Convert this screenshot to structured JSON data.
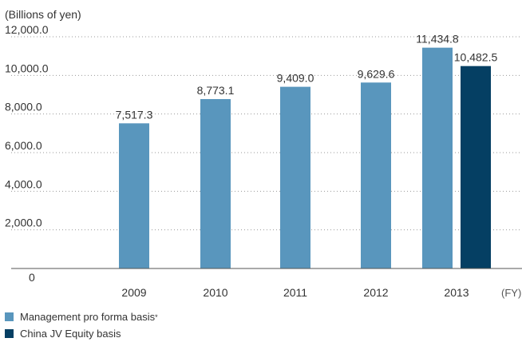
{
  "chart_data": {
    "type": "bar",
    "ylabel": "(Billions of yen)",
    "xunit": "(FY)",
    "ylim": [
      0,
      12000
    ],
    "yticks": [
      0,
      2000,
      4000,
      6000,
      8000,
      10000,
      12000
    ],
    "ytick_labels": [
      "0",
      "2,000.0",
      "4,000.0",
      "6,000.0",
      "8,000.0",
      "10,000.0",
      "12,000.0"
    ],
    "grid": "horizontal-dotted",
    "categories": [
      "2009",
      "2010",
      "2011",
      "2012",
      "2013"
    ],
    "series": [
      {
        "name": "Management pro forma basis",
        "color": "#5996bd",
        "values": [
          7517.3,
          8773.1,
          9409.0,
          9629.6,
          11434.8
        ],
        "labels": [
          "7,517.3",
          "8,773.1",
          "9,409.0",
          "9,629.6",
          "11,434.8"
        ]
      },
      {
        "name": "China JV Equity basis",
        "color": "#053f63",
        "values": [
          null,
          null,
          null,
          null,
          10482.5
        ],
        "labels": [
          null,
          null,
          null,
          null,
          "10,482.5"
        ]
      }
    ],
    "legend_placement": "bottom-left"
  },
  "legend": {
    "items": [
      {
        "label": "Management pro forma basis",
        "suffix": "*",
        "color": "#5996bd"
      },
      {
        "label": "China JV Equity basis",
        "suffix": "",
        "color": "#053f63"
      }
    ]
  }
}
